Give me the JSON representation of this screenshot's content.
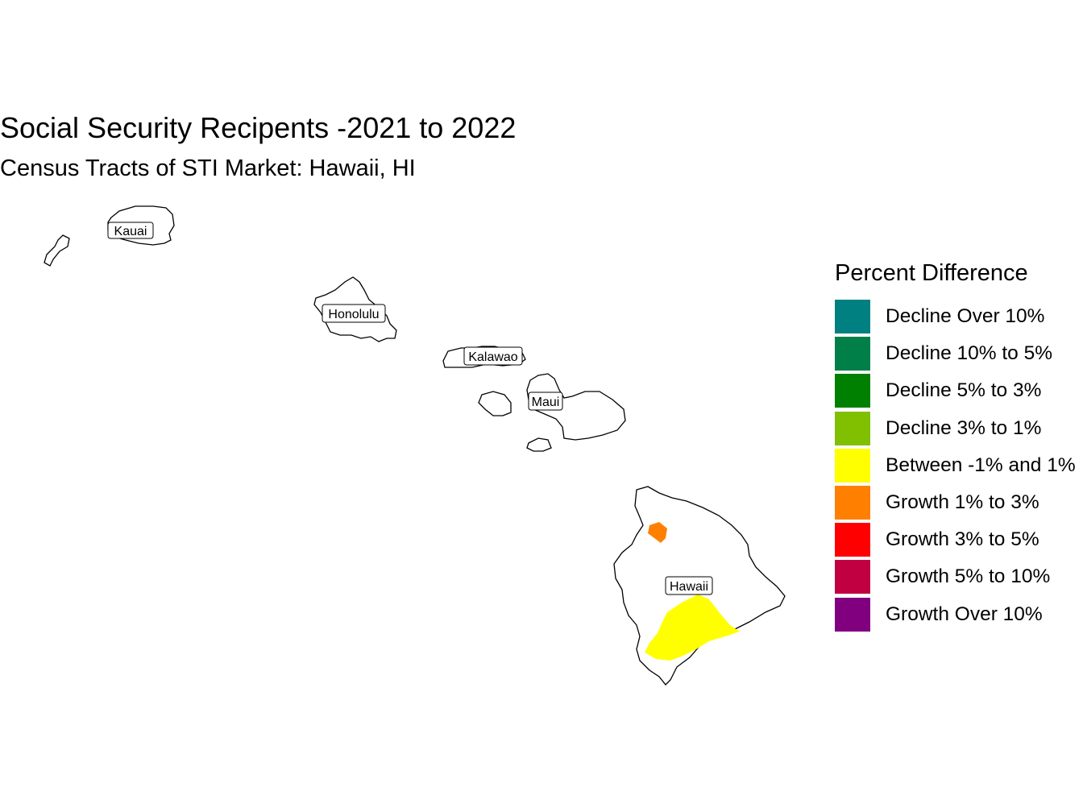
{
  "title": "Social Security Recipents -2021 to 2022",
  "subtitle": "Census Tracts of STI Market: Hawaii, HI",
  "legend": {
    "title": "Percent Difference",
    "items": [
      {
        "label": "Decline Over 10%",
        "color": "#008080"
      },
      {
        "label": "Decline 10% to 5%",
        "color": "#008048"
      },
      {
        "label": "Decline 5% to 3%",
        "color": "#008000"
      },
      {
        "label": "Decline 3% to 1%",
        "color": "#80C000"
      },
      {
        "label": "Between -1% and 1%",
        "color": "#FFFF00"
      },
      {
        "label": "Growth 1% to 3%",
        "color": "#FF8000"
      },
      {
        "label": "Growth 3% to 5%",
        "color": "#FF0000"
      },
      {
        "label": "Growth 5% to 10%",
        "color": "#C00040"
      },
      {
        "label": "Growth Over 10%",
        "color": "#800080"
      }
    ]
  },
  "counties": [
    {
      "name": "Kauai"
    },
    {
      "name": "Honolulu"
    },
    {
      "name": "Kalawao"
    },
    {
      "name": "Maui"
    },
    {
      "name": "Hawaii"
    }
  ],
  "tract_fills": {
    "hawaii_south": "#FFFF00",
    "hawaii_north": "#FF8000"
  }
}
